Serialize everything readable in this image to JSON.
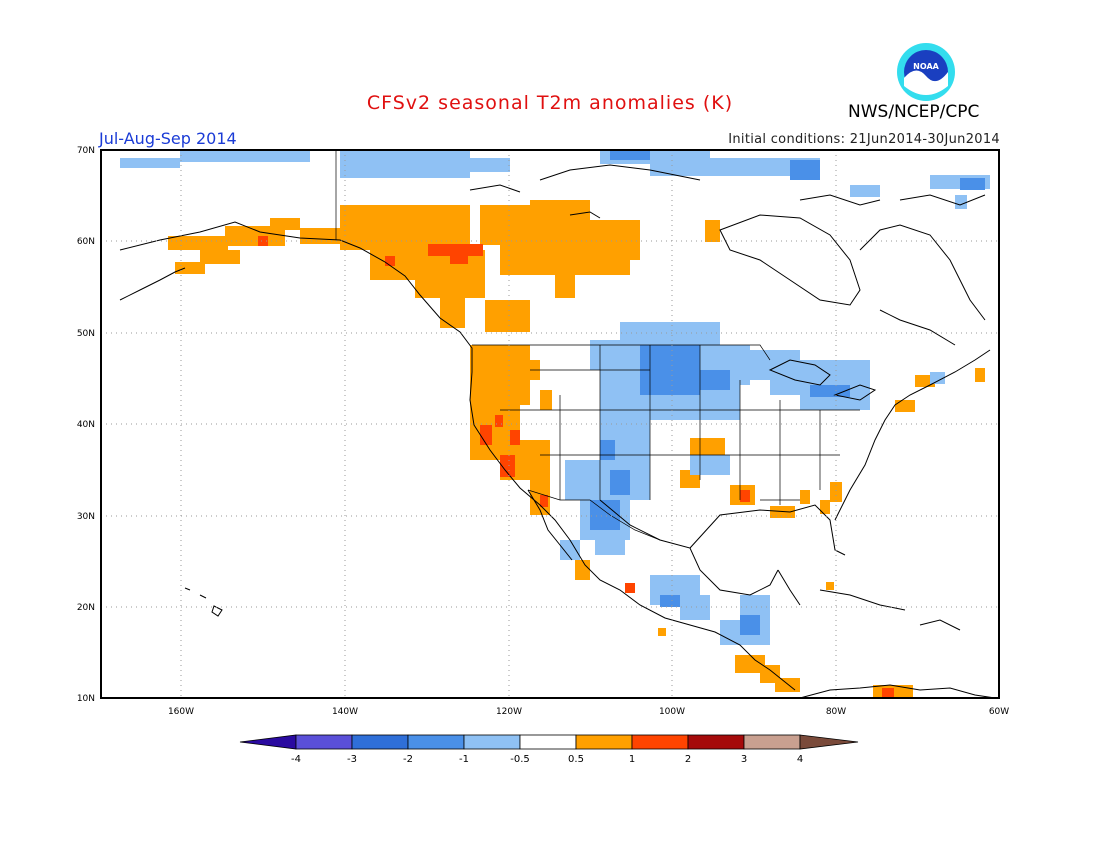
{
  "header": {
    "title": "CFSv2 seasonal T2m anomalies (K)",
    "season": "Jul-Aug-Sep 2014",
    "initial_conditions": "Initial conditions: 21Jun2014-30Jun2014",
    "agency": "NWS/NCEP/CPC",
    "logo_text": "NOAA"
  },
  "map": {
    "lat_labels": [
      "70N",
      "60N",
      "50N",
      "40N",
      "30N",
      "20N",
      "10N"
    ],
    "lon_labels": [
      "160W",
      "140W",
      "120W",
      "100W",
      "80W",
      "60W"
    ],
    "lat_range": [
      10,
      70
    ],
    "lon_range": [
      -170,
      -60
    ],
    "grid": "dotted"
  },
  "legend": {
    "labels": [
      "-4",
      "-3",
      "-2",
      "-1",
      "-0.5",
      "0.5",
      "1",
      "2",
      "3",
      "4"
    ],
    "colors": [
      "#2a0aa0",
      "#5a4fd8",
      "#2f6fd8",
      "#4a90e8",
      "#8fc1f4",
      "#ffffff",
      "#ffa000",
      "#ff4400",
      "#a50a0a",
      "#c9a090",
      "#7a4a3a"
    ]
  },
  "colors": {
    "warm_05_1": "#ffa000",
    "warm_1_2": "#ff4400",
    "cool_05_1": "#8fc1f4",
    "cool_1_2": "#4a90e8",
    "title": "#e01010",
    "season": "#1a3bd6"
  }
}
